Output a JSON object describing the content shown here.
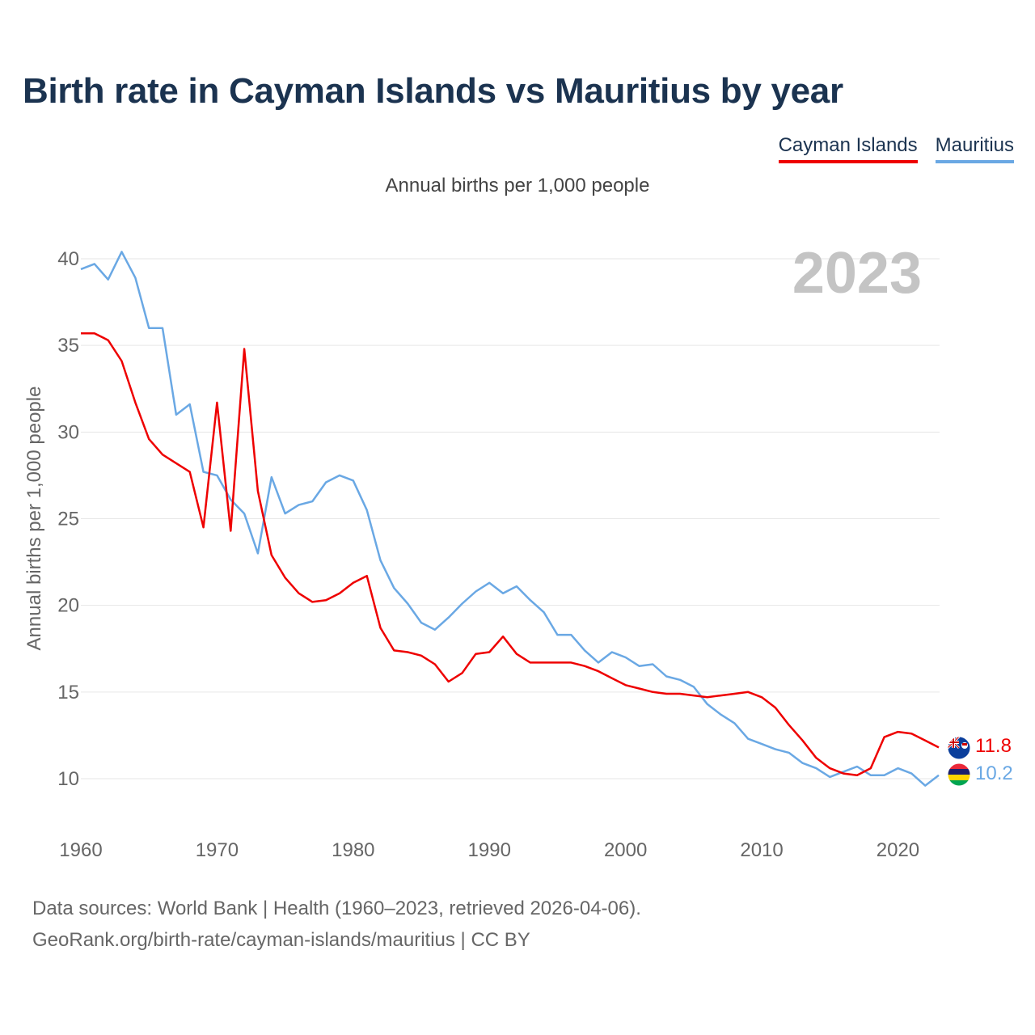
{
  "title": "Birth rate in Cayman Islands vs Mauritius by year",
  "subtitle": "Annual births per 1,000 people",
  "footer": {
    "line1": "Data sources: World Bank | Health (1960–2023, retrieved 2026-04-06).",
    "line2": "GeoRank.org/birth-rate/cayman-islands/mauritius | CC BY"
  },
  "colors": {
    "cayman": "#ee0000",
    "mauritius": "#6aa8e4",
    "grid": "#e6e6e6",
    "axis_text": "#666666",
    "year_watermark": "#c4c4c4"
  },
  "chart_data": {
    "type": "line",
    "title": "Birth rate in Cayman Islands vs Mauritius by year",
    "ylabel": "Annual births per 1,000 people",
    "xlabel": "",
    "xlim": [
      1960,
      2023
    ],
    "ylim": [
      7.5,
      42
    ],
    "yticks": [
      10,
      15,
      20,
      25,
      30,
      35,
      40
    ],
    "xticks": [
      1960,
      1970,
      1980,
      1990,
      2000,
      2010,
      2020
    ],
    "current_year": "2023",
    "x": [
      1960,
      1961,
      1962,
      1963,
      1964,
      1965,
      1966,
      1967,
      1968,
      1969,
      1970,
      1971,
      1972,
      1973,
      1974,
      1975,
      1976,
      1977,
      1978,
      1979,
      1980,
      1981,
      1982,
      1983,
      1984,
      1985,
      1986,
      1987,
      1988,
      1989,
      1990,
      1991,
      1992,
      1993,
      1994,
      1995,
      1996,
      1997,
      1998,
      1999,
      2000,
      2001,
      2002,
      2003,
      2004,
      2005,
      2006,
      2007,
      2008,
      2009,
      2010,
      2011,
      2012,
      2013,
      2014,
      2015,
      2016,
      2017,
      2018,
      2019,
      2020,
      2021,
      2022,
      2023
    ],
    "series": [
      {
        "name": "Cayman Islands",
        "color": "#ee0000",
        "end_label": "11.8",
        "values": [
          35.7,
          35.7,
          35.3,
          34.1,
          31.7,
          29.6,
          28.7,
          28.2,
          27.7,
          24.5,
          31.7,
          24.3,
          34.8,
          26.6,
          22.9,
          21.6,
          20.7,
          20.2,
          20.3,
          20.7,
          21.3,
          21.7,
          18.7,
          17.4,
          17.3,
          17.1,
          16.6,
          15.6,
          16.1,
          17.2,
          17.3,
          18.2,
          17.2,
          16.7,
          16.7,
          16.7,
          16.7,
          16.5,
          16.2,
          15.8,
          15.4,
          15.2,
          15.0,
          14.9,
          14.9,
          14.8,
          14.7,
          14.8,
          14.9,
          15.0,
          14.7,
          14.1,
          13.1,
          12.2,
          11.2,
          10.6,
          10.3,
          10.2,
          10.6,
          12.4,
          12.7,
          12.6,
          12.2,
          11.8
        ]
      },
      {
        "name": "Mauritius",
        "color": "#6aa8e4",
        "end_label": "10.2",
        "values": [
          39.4,
          39.7,
          38.8,
          40.4,
          38.9,
          36.0,
          36.0,
          31.0,
          31.6,
          27.7,
          27.5,
          26.1,
          25.3,
          23.0,
          27.4,
          25.3,
          25.8,
          26.0,
          27.1,
          27.5,
          27.2,
          25.5,
          22.6,
          21.0,
          20.1,
          19.0,
          18.6,
          19.3,
          20.1,
          20.8,
          21.3,
          20.7,
          21.1,
          20.3,
          19.6,
          18.3,
          18.3,
          17.4,
          16.7,
          17.3,
          17.0,
          16.5,
          16.6,
          15.9,
          15.7,
          15.3,
          14.3,
          13.7,
          13.2,
          12.3,
          12.0,
          11.7,
          11.5,
          10.9,
          10.6,
          10.1,
          10.4,
          10.7,
          10.2,
          10.2,
          10.6,
          10.3,
          9.6,
          10.2
        ]
      }
    ]
  }
}
